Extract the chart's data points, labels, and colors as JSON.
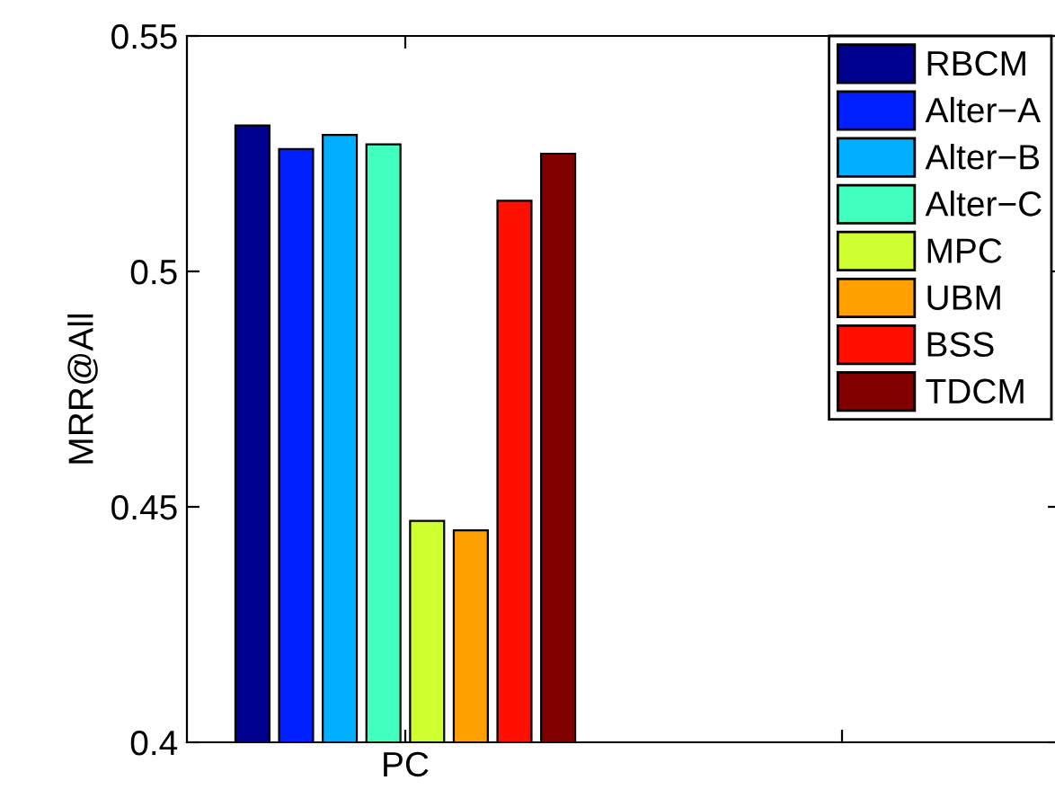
{
  "chart_data": {
    "type": "bar",
    "ylabel": "MRR@All",
    "categories": [
      "PC",
      null
    ],
    "series": [
      {
        "name": "RBCM",
        "color": "#00008f",
        "values": [
          0.531,
          null
        ]
      },
      {
        "name": "Alter−A",
        "color": "#0020ff",
        "values": [
          0.526,
          null
        ]
      },
      {
        "name": "Alter−B",
        "color": "#00afff",
        "values": [
          0.529,
          null
        ]
      },
      {
        "name": "Alter−C",
        "color": "#40ffbf",
        "values": [
          0.527,
          null
        ]
      },
      {
        "name": "MPC",
        "color": "#cfff30",
        "values": [
          0.447,
          null
        ]
      },
      {
        "name": "UBM",
        "color": "#ff9f00",
        "values": [
          0.445,
          null
        ]
      },
      {
        "name": "BSS",
        "color": "#ff1000",
        "values": [
          0.515,
          null
        ]
      },
      {
        "name": "TDCM",
        "color": "#800000",
        "values": [
          0.525,
          null
        ]
      }
    ],
    "ylim": [
      0.4,
      0.55
    ],
    "yticks": [
      0.4,
      0.45,
      0.5,
      0.55
    ],
    "legend": "top right",
    "grid": false
  }
}
